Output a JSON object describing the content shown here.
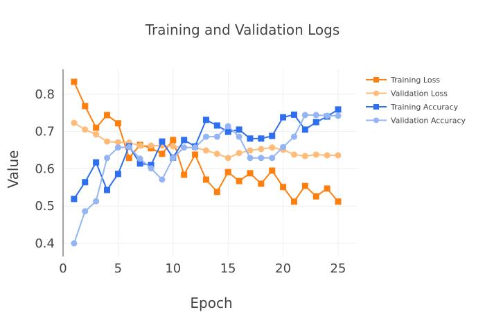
{
  "chart_data": {
    "type": "line",
    "title": "Training and Validation Logs",
    "xlabel": "Epoch",
    "ylabel": "Value",
    "xlim": [
      0,
      27
    ],
    "ylim": [
      0.37,
      0.87
    ],
    "xticks": [
      0,
      5,
      10,
      15,
      20,
      25
    ],
    "yticks": [
      0.4,
      0.5,
      0.6,
      0.7,
      0.8
    ],
    "grid": true,
    "legend": "top-right",
    "x": [
      1,
      2,
      3,
      4,
      5,
      6,
      7,
      8,
      9,
      10,
      11,
      12,
      13,
      14,
      15,
      16,
      17,
      18,
      19,
      20,
      21,
      22,
      23,
      24,
      25
    ],
    "series": [
      {
        "name": "Training Loss",
        "color": "#ff7f0e",
        "marker": "square",
        "values": [
          0.833,
          0.768,
          0.71,
          0.744,
          0.722,
          0.629,
          0.664,
          0.655,
          0.64,
          0.677,
          0.584,
          0.638,
          0.571,
          0.538,
          0.591,
          0.567,
          0.588,
          0.56,
          0.595,
          0.551,
          0.512,
          0.554,
          0.526,
          0.547,
          0.512
        ]
      },
      {
        "name": "Validation Loss",
        "color": "#ffbb78",
        "marker": "circle",
        "values": [
          0.723,
          0.705,
          0.692,
          0.673,
          0.671,
          0.67,
          0.662,
          0.662,
          0.662,
          0.66,
          0.657,
          0.657,
          0.649,
          0.64,
          0.629,
          0.642,
          0.649,
          0.653,
          0.657,
          0.651,
          0.638,
          0.634,
          0.638,
          0.636,
          0.636
        ]
      },
      {
        "name": "Training Accuracy",
        "color": "#2e6ff0",
        "marker": "square",
        "values": [
          0.519,
          0.564,
          0.617,
          0.543,
          0.586,
          0.66,
          0.614,
          0.61,
          0.673,
          0.63,
          0.677,
          0.66,
          0.731,
          0.716,
          0.699,
          0.705,
          0.681,
          0.681,
          0.688,
          0.738,
          0.745,
          0.705,
          0.725,
          0.74,
          0.759
        ]
      },
      {
        "name": "Validation Accuracy",
        "color": "#93b5f5",
        "marker": "circle",
        "values": [
          0.4,
          0.486,
          0.513,
          0.629,
          0.657,
          0.658,
          0.627,
          0.601,
          0.571,
          0.629,
          0.657,
          0.657,
          0.686,
          0.686,
          0.714,
          0.686,
          0.629,
          0.629,
          0.629,
          0.658,
          0.686,
          0.744,
          0.744,
          0.742,
          0.742
        ]
      }
    ]
  }
}
